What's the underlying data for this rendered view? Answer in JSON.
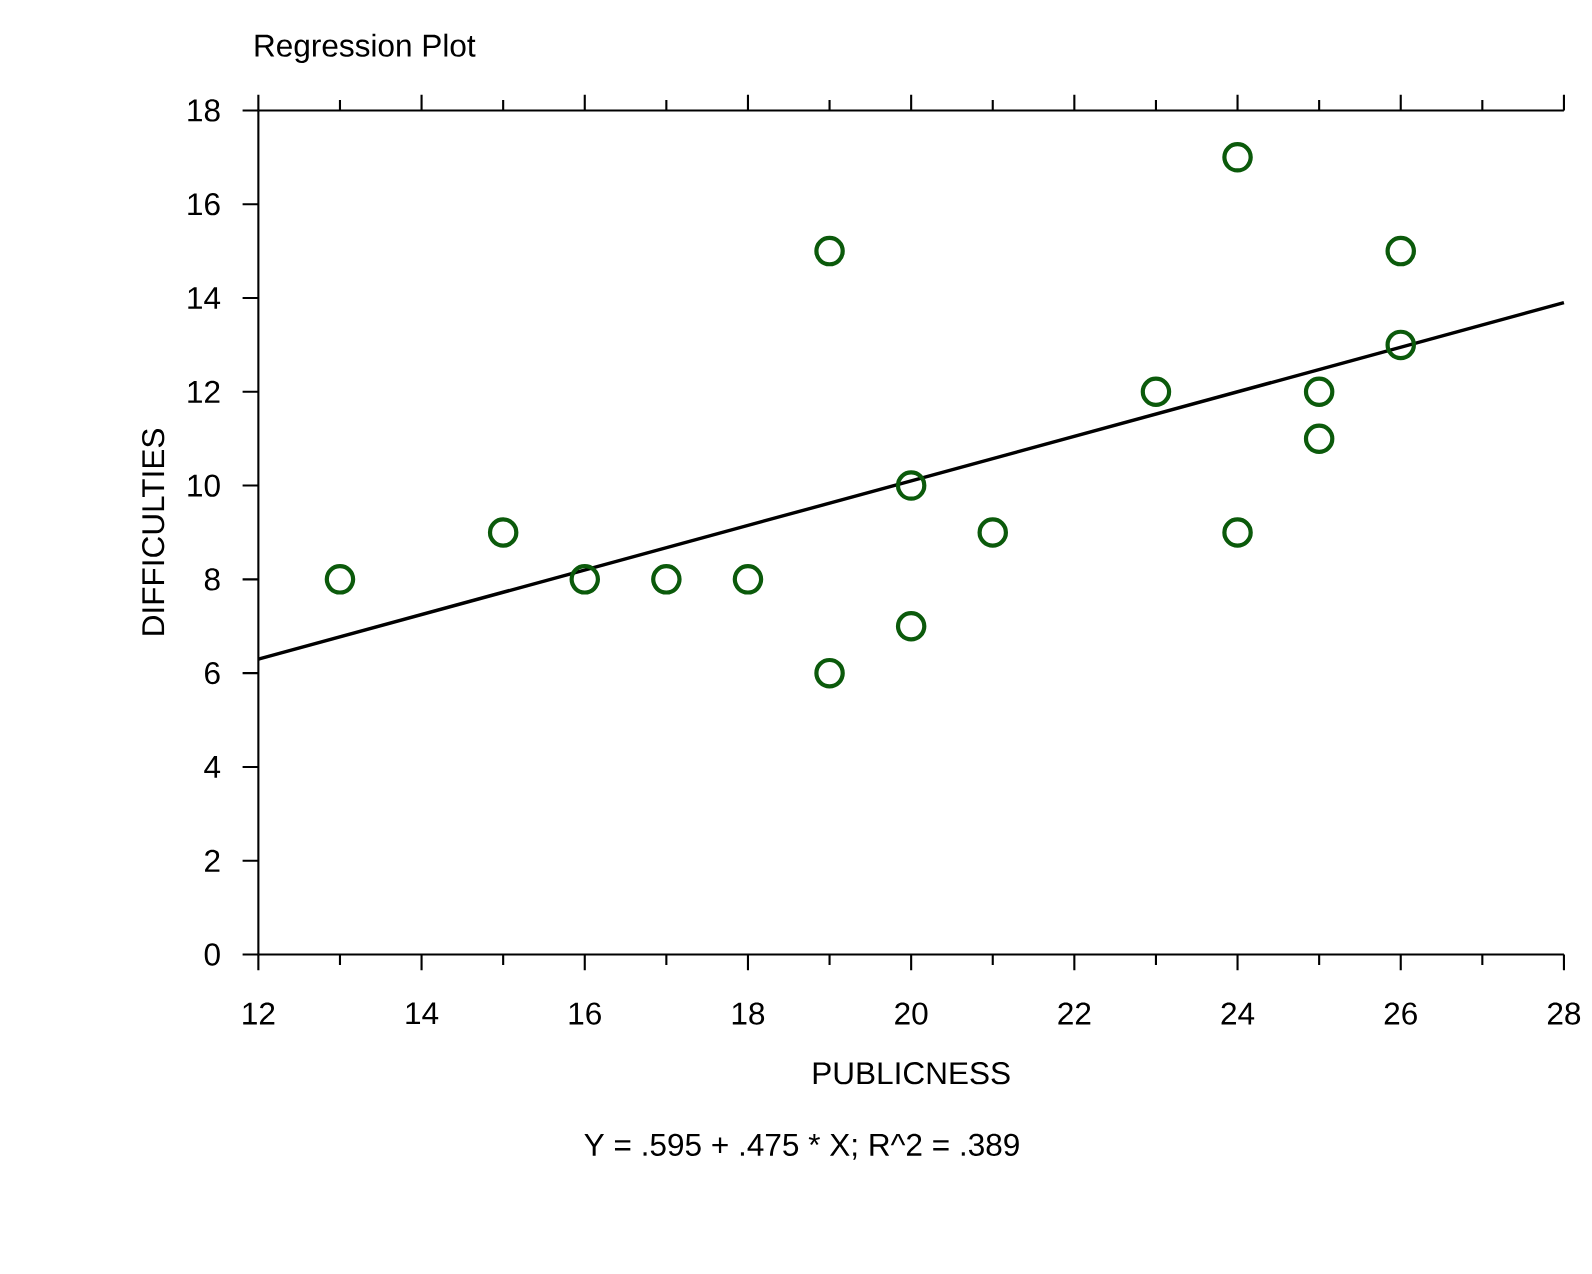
{
  "chart_data": {
    "type": "scatter",
    "title": "Regression Plot",
    "xlabel": "PUBLICNESS",
    "ylabel": "DIFFICULTIES",
    "series": [
      {
        "marker": "circle",
        "color": "#0b5a0b",
        "x": [
          13,
          15,
          16,
          17,
          18,
          19,
          19,
          20,
          20,
          21,
          23,
          24,
          24,
          25,
          25,
          26,
          26
        ],
        "values": [
          8,
          9,
          8,
          8,
          8,
          15,
          6,
          10,
          7,
          9,
          12,
          17,
          9,
          12,
          11,
          15,
          13
        ]
      },
      {
        "type": "line",
        "color": "#000000",
        "x": [
          12,
          28
        ],
        "values": [
          6.3,
          13.9
        ]
      }
    ],
    "xlim": [
      12,
      28
    ],
    "xticks": [
      12,
      14,
      16,
      18,
      20,
      22,
      24,
      26,
      28
    ],
    "ylim": [
      0,
      18
    ],
    "yticks": [
      0,
      2,
      4,
      6,
      8,
      10,
      12,
      14,
      16,
      18
    ],
    "annotations": [
      "Y = .595 + .475 * X; R^2 = .389"
    ]
  }
}
